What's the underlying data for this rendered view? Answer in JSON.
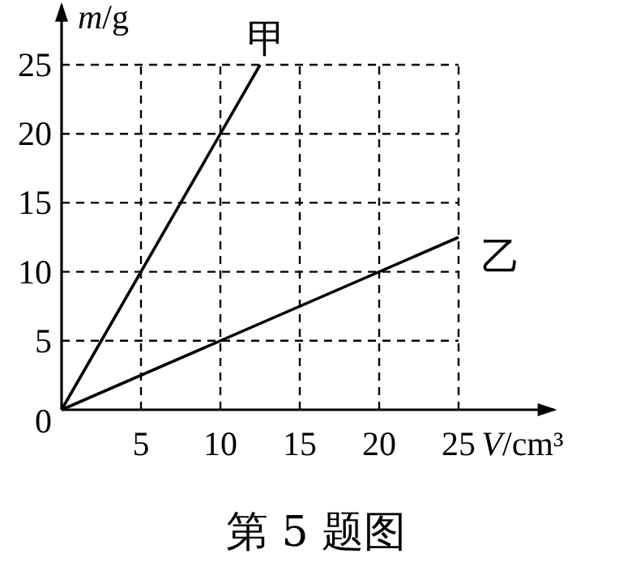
{
  "chart_data": {
    "type": "line",
    "title": "第 5 题图",
    "xlabel": "V/cm³",
    "ylabel": "m/g",
    "xlim": [
      0,
      31
    ],
    "ylim": [
      0,
      29.3
    ],
    "xticks": [
      5,
      10,
      15,
      20,
      25
    ],
    "yticks": [
      0,
      5,
      10,
      15,
      20,
      25
    ],
    "grid": true,
    "series": [
      {
        "name": "甲",
        "color": "#000000",
        "x": [
          0,
          12.5
        ],
        "values": [
          0,
          25
        ]
      },
      {
        "name": "乙",
        "color": "#000000",
        "x": [
          0,
          25
        ],
        "values": [
          0,
          12.5
        ]
      }
    ]
  }
}
